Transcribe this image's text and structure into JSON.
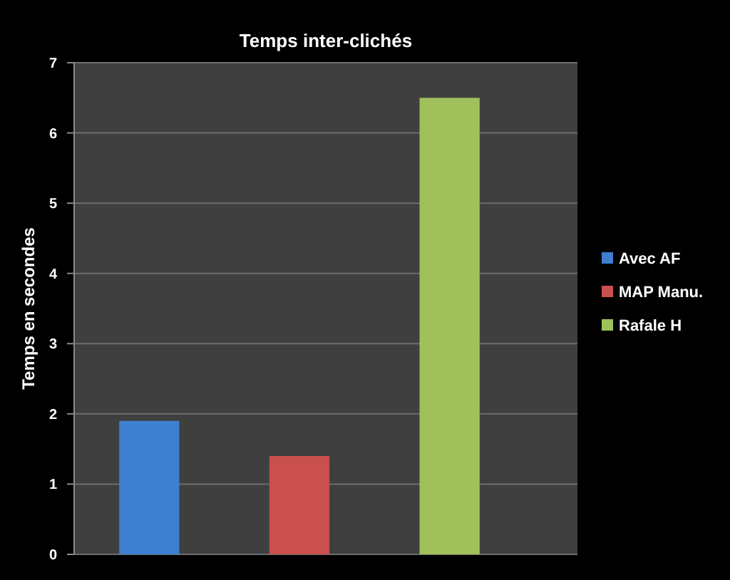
{
  "chart_data": {
    "type": "bar",
    "title": "Temps inter-clichés",
    "ylabel": "Temps en secondes",
    "categories": [
      null
    ],
    "series": [
      {
        "name": "Avec AF",
        "color": "#3f7fd0",
        "values": [
          1.9
        ]
      },
      {
        "name": "MAP Manu.",
        "color": "#c9504e",
        "values": [
          1.4
        ]
      },
      {
        "name": "Rafale H",
        "color": "#a0c05c",
        "values": [
          6.5
        ]
      }
    ],
    "ylim": [
      0,
      7
    ],
    "yticks": [
      0,
      1,
      2,
      3,
      4,
      5,
      6,
      7
    ],
    "grid": "y",
    "legend": "right",
    "tick_labels": "y"
  }
}
